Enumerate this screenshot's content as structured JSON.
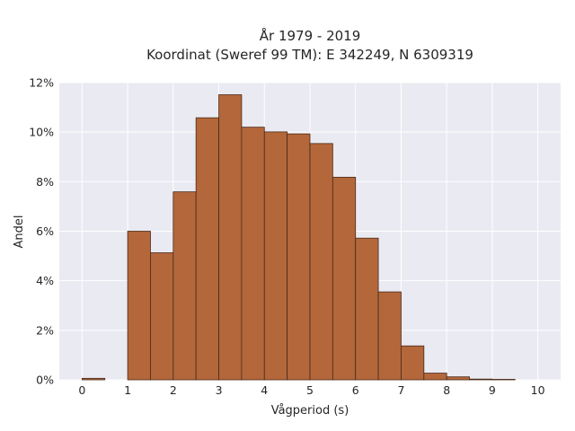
{
  "chart_data": {
    "type": "bar",
    "title_lines": [
      "År 1979 - 2019",
      "Koordinat (Sweref 99 TM): E 342249, N 6309319"
    ],
    "xlabel": "Vågperiod (s)",
    "ylabel": "Andel",
    "xlim": [
      -0.5,
      10.5
    ],
    "ylim": [
      0,
      0.12
    ],
    "x_ticks": [
      0,
      1,
      2,
      3,
      4,
      5,
      6,
      7,
      8,
      9,
      10
    ],
    "x_tick_labels": [
      "0",
      "1",
      "2",
      "3",
      "4",
      "5",
      "6",
      "7",
      "8",
      "9",
      "10"
    ],
    "y_ticks": [
      0,
      0.02,
      0.04,
      0.06,
      0.08,
      0.1,
      0.12
    ],
    "y_tick_labels": [
      "0%",
      "2%",
      "4%",
      "6%",
      "8%",
      "10%",
      "12%"
    ],
    "bin_edges": [
      0,
      0.5,
      1,
      1.5,
      2,
      2.5,
      3,
      3.5,
      4,
      4.5,
      5,
      5.5,
      6,
      6.5,
      7,
      7.5,
      8,
      8.5,
      9,
      9.5,
      10
    ],
    "values": [
      0.0006,
      0,
      0.06,
      0.0513,
      0.0759,
      0.1058,
      0.1151,
      0.102,
      0.1001,
      0.0993,
      0.0954,
      0.0818,
      0.0572,
      0.0355,
      0.0137,
      0.0027,
      0.0012,
      0.0003,
      0.0002,
      0
    ],
    "grid": true,
    "legend": "none",
    "colors": {
      "bar_fill": "#b3673b",
      "bar_edge": "#4a2a18",
      "plot_background": "#eaeaf2",
      "grid": "#ffffff"
    }
  }
}
